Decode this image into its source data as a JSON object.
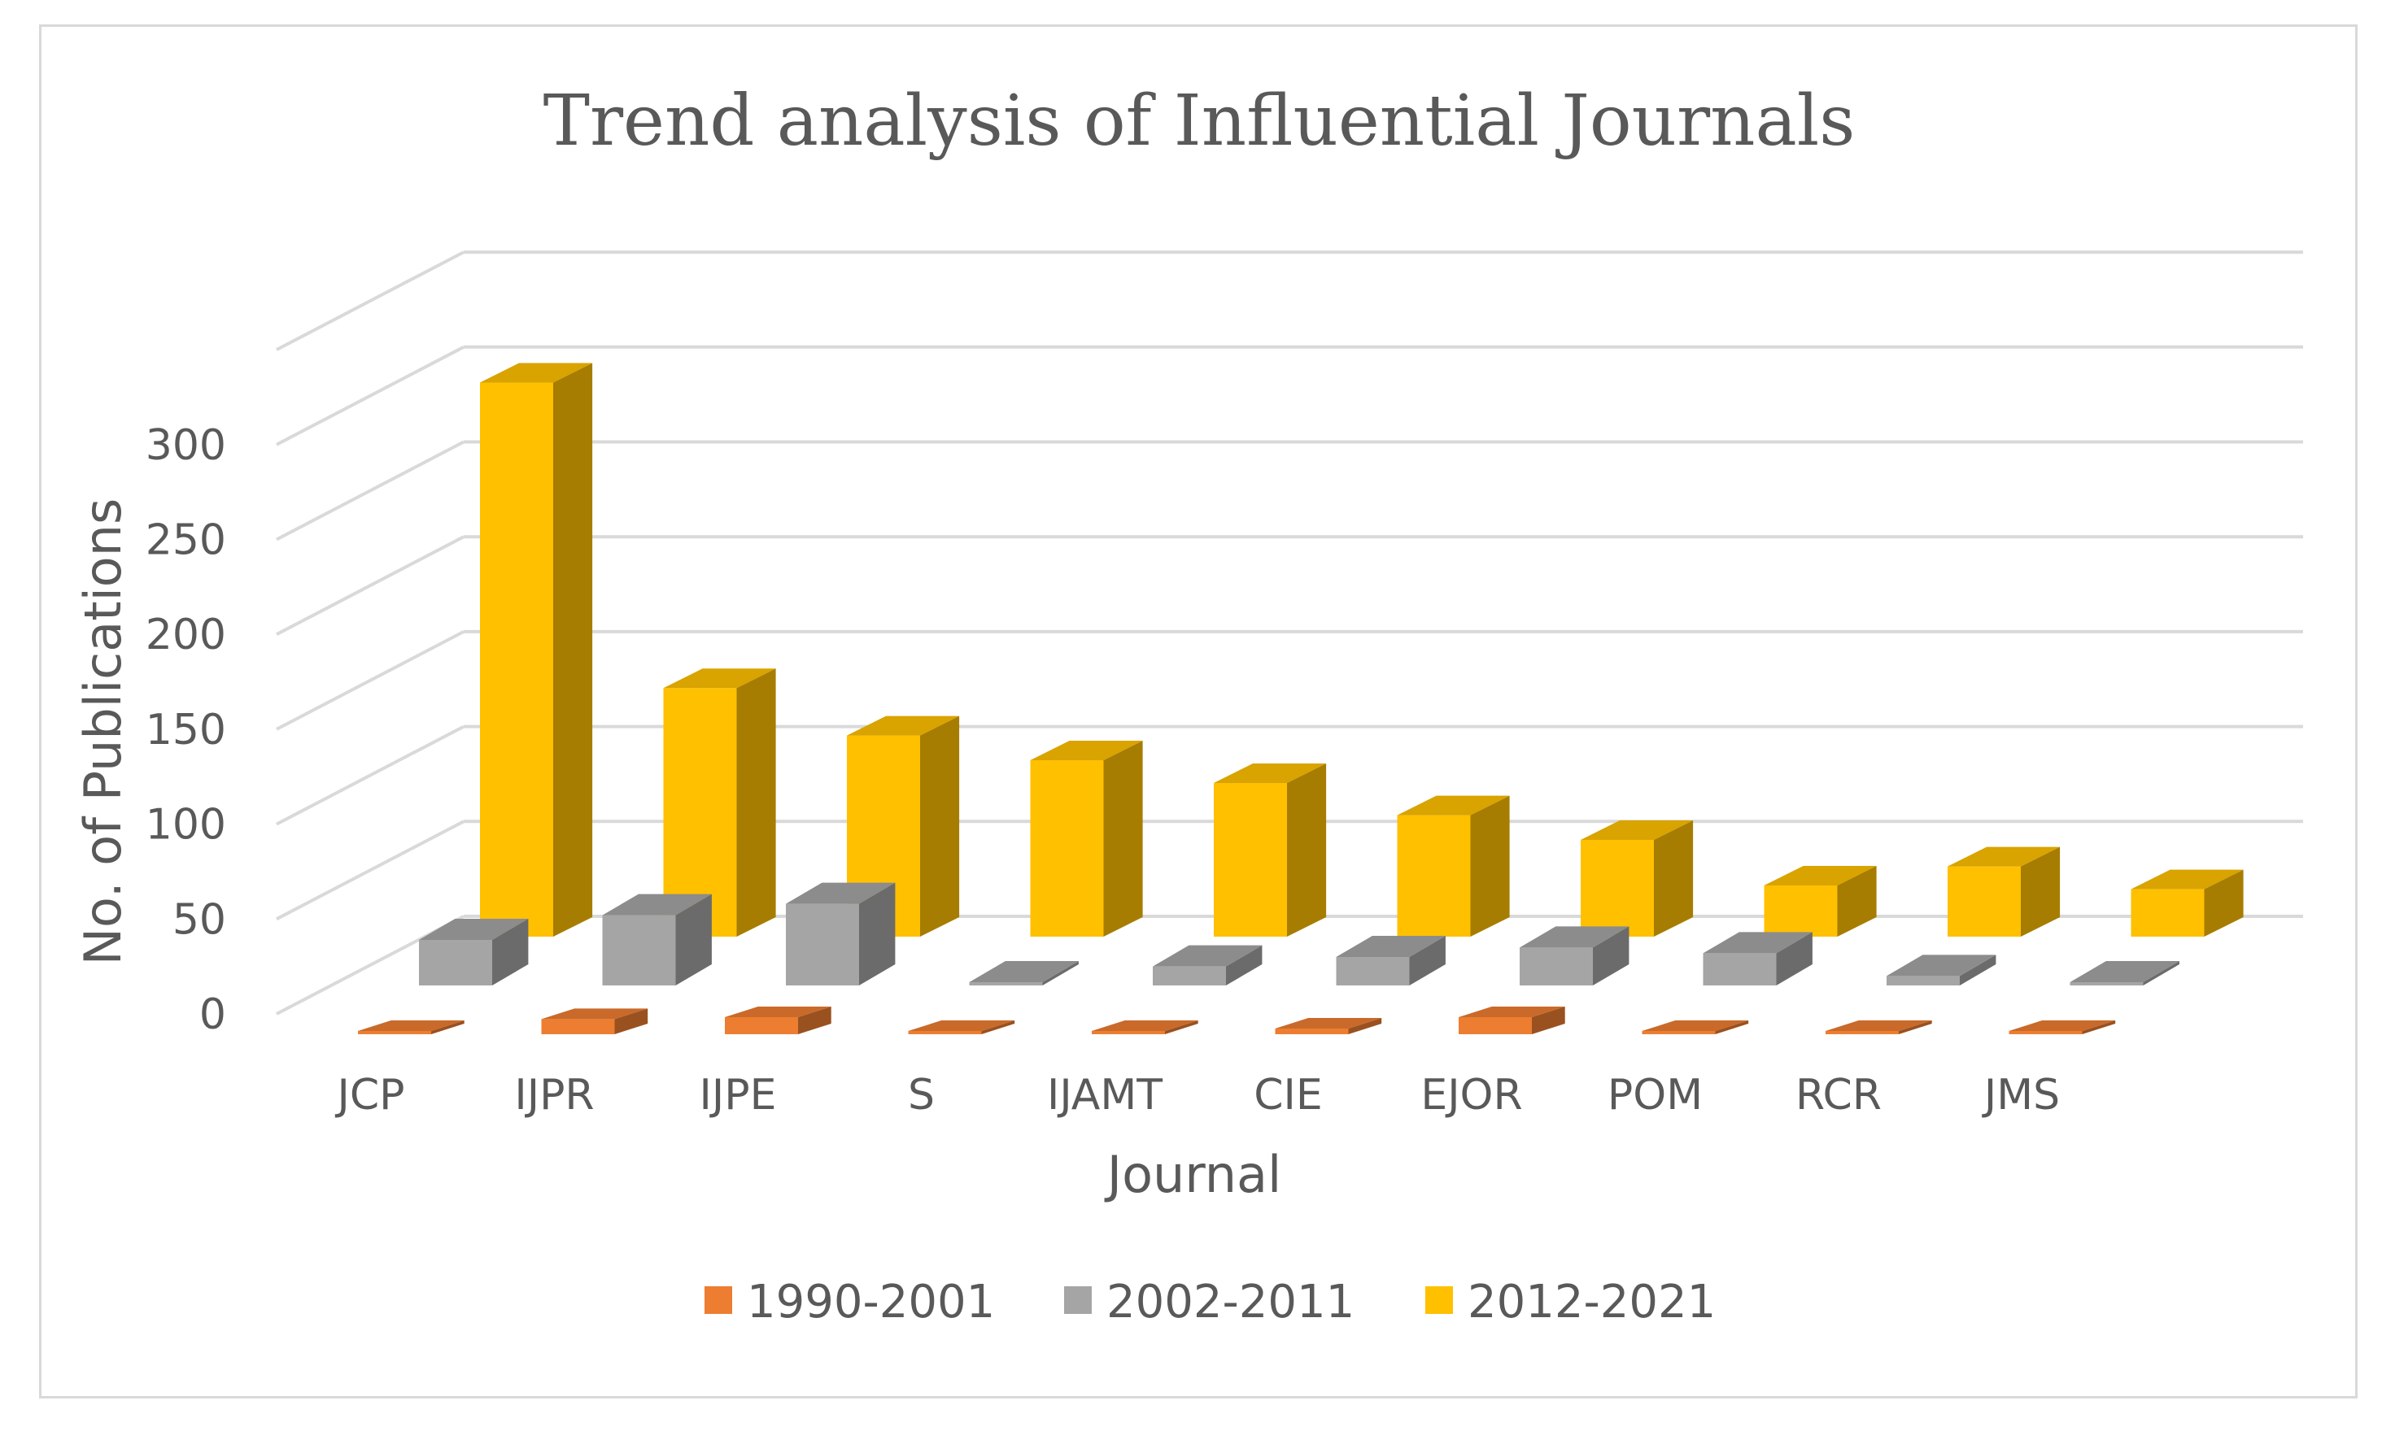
{
  "chart_data": {
    "type": "bar",
    "subtype": "3d-clustered-column",
    "title": "Trend analysis of Influential Journals",
    "xlabel": "Journal",
    "ylabel": "No. of Publications",
    "ylim": [
      0,
      350
    ],
    "yticks": [
      0,
      50,
      100,
      150,
      200,
      250,
      300
    ],
    "ytick_labels": [
      "0",
      "50",
      "100",
      "150",
      "200",
      "250",
      "300"
    ],
    "grid": true,
    "legend_position": "bottom",
    "categories": [
      "JCP",
      "IJPR",
      "IJPE",
      "S",
      "IJAMT",
      "CIE",
      "EJOR",
      "POM",
      "RCR",
      "JMS"
    ],
    "series": [
      {
        "name": "1990-2001",
        "color": "#ED7D31",
        "values": [
          0,
          8,
          9,
          0,
          0,
          3,
          9,
          1,
          0,
          0
        ]
      },
      {
        "name": "2002-2011",
        "color": "#A5A5A5",
        "values": [
          24,
          37,
          43,
          0,
          10,
          15,
          20,
          17,
          5,
          0
        ]
      },
      {
        "name": "2012-2021",
        "color": "#FFC000",
        "values": [
          292,
          131,
          106,
          93,
          81,
          64,
          51,
          27,
          37,
          25
        ]
      }
    ]
  }
}
